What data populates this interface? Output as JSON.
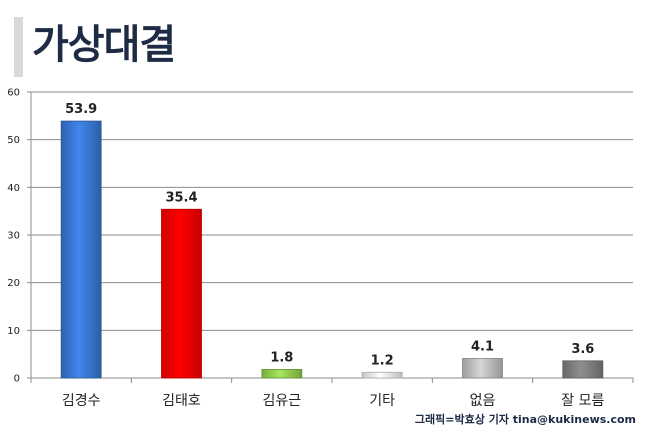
{
  "header": {
    "title": "가상대결"
  },
  "credit": "그래픽=박효상 기자 tina@kukinews.com",
  "chart_data": {
    "type": "bar",
    "title": "가상대결",
    "categories": [
      "김경수",
      "김태호",
      "김유근",
      "기타",
      "없음",
      "잘 모름"
    ],
    "values": [
      53.9,
      35.4,
      1.8,
      1.2,
      4.1,
      3.6
    ],
    "data_labels": [
      "53.9",
      "35.4",
      "1.8",
      "1.2",
      "4.1",
      "3.6"
    ],
    "colors": [
      "#3a78d4",
      "#ff0000",
      "#92d050",
      "#f2f2f2",
      "#bfbfbf",
      "#808080"
    ],
    "ylim": [
      0,
      60
    ],
    "yticks": [
      0,
      10,
      20,
      30,
      40,
      50,
      60
    ],
    "grid": true
  }
}
